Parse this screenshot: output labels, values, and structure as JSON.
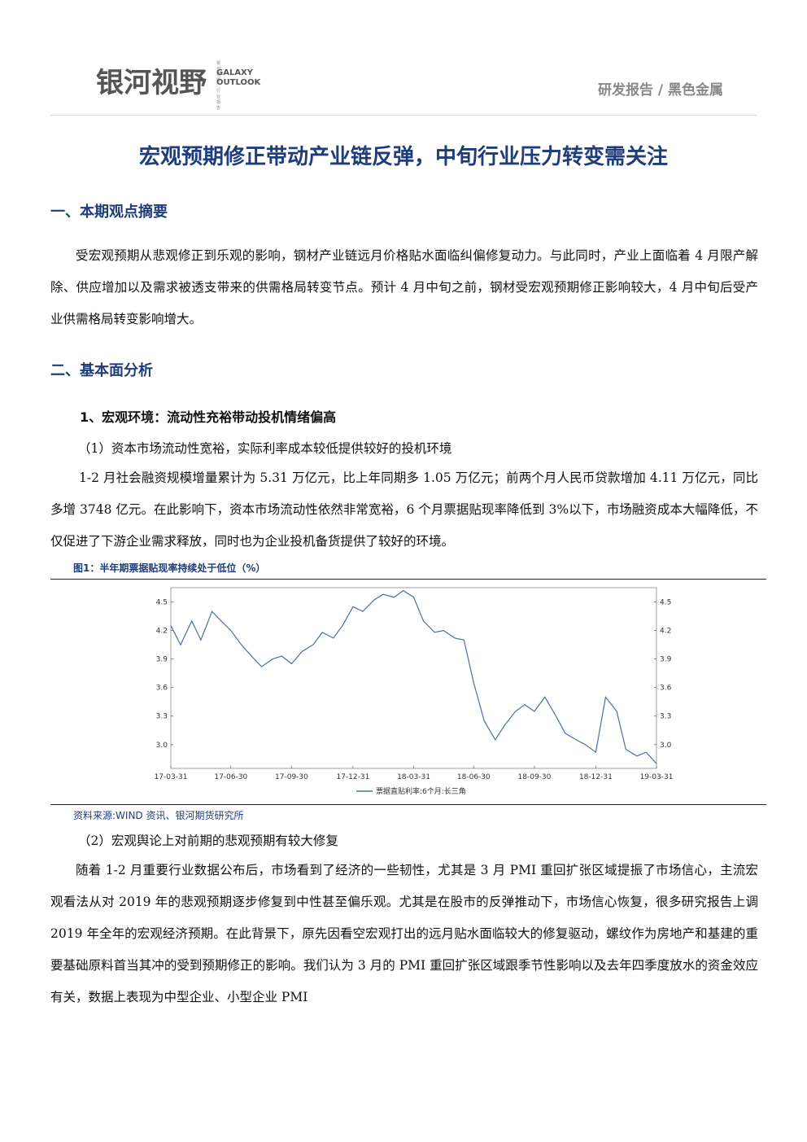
{
  "header": {
    "logo_cn": "银河视野",
    "logo_en_line1": "GALAXY",
    "logo_en_line2": "OUTLOOK",
    "logo_tiny": "银河视野 · 行业报告",
    "category": "研发报告 / 黑色金属"
  },
  "title": "宏观预期修正带动产业链反弹，中旬行业压力转变需关注",
  "section1": {
    "heading": "一、本期观点摘要",
    "body": "受宏观预期从悲观修正到乐观的影响，钢材产业链远月价格贴水面临纠偏修复动力。与此同时，产业上面临着 4 月限产解除、供应增加以及需求被透支带来的供需格局转变节点。预计 4 月中旬之前，钢材受宏观预期修正影响较大，4 月中旬后受产业供需格局转变影响增大。"
  },
  "section2": {
    "heading": "二、基本面分析",
    "sub1": "1、宏观环境：流动性充裕带动投机情绪偏高",
    "point1": "（1）资本市场流动性宽裕，实际利率成本较低提供较好的投机环境",
    "para1": "1-2 月社会融资规模增量累计为 5.31 万亿元，比上年同期多 1.05 万亿元；前两个月人民币贷款增加 4.11 万亿元，同比多增 3748 亿元。在此影响下，资本市场流动性依然非常宽裕，6 个月票据贴现率降低到 3%以下，市场融资成本大幅降低，不仅促进了下游企业需求释放，同时也为企业投机备货提供了较好的环境。",
    "figure_title": "图1：半年期票据贴现率持续处于低位（%）",
    "figure_source": "资料来源:WIND 资讯、银河期货研究所",
    "point2": "（2）宏观舆论上对前期的悲观预期有较大修复",
    "para2": "随着 1-2 月重要行业数据公布后，市场看到了经济的一些韧性，尤其是 3 月 PMI 重回扩张区域提振了市场信心，主流宏观看法从对 2019 年的悲观预期逐步修复到中性甚至偏乐观。尤其是在股市的反弹推动下，市场信心恢复，很多研究报告上调 2019 年全年的宏观经济预期。在此背景下，原先因看空宏观打出的远月贴水面临较大的修复驱动，螺纹作为房地产和基建的重要基础原料首当其冲的受到预期修正的影响。我们认为 3 月的 PMI 重回扩张区域跟季节性影响以及去年四季度放水的资金效应有关，数据上表现为中型企业、小型企业 PMI"
  },
  "chart_data": {
    "type": "line",
    "title": "",
    "xlabel": "",
    "ylabel": "",
    "x_ticks": [
      "17-03-31",
      "17-06-30",
      "17-09-30",
      "17-12-31",
      "18-03-31",
      "18-06-30",
      "18-09-30",
      "18-12-31",
      "19-03-31"
    ],
    "y_ticks": [
      "3.0",
      "3.3",
      "3.6",
      "3.9",
      "4.2",
      "4.5"
    ],
    "ylim": [
      2.75,
      4.65
    ],
    "legend": "票据直贴利率:6个月:长三角",
    "color": "#4a6fa5",
    "series": [
      {
        "name": "票据直贴利率:6个月:长三角",
        "x": [
          "17-03-31",
          "17-04-15",
          "17-05-01",
          "17-05-15",
          "17-06-01",
          "17-06-15",
          "17-06-30",
          "17-07-15",
          "17-08-01",
          "17-08-15",
          "17-09-01",
          "17-09-15",
          "17-09-30",
          "17-10-15",
          "17-11-01",
          "17-11-15",
          "17-12-01",
          "17-12-15",
          "17-12-31",
          "18-01-15",
          "18-02-01",
          "18-02-15",
          "18-03-01",
          "18-03-15",
          "18-03-31",
          "18-04-15",
          "18-05-01",
          "18-05-15",
          "18-06-01",
          "18-06-15",
          "18-06-30",
          "18-07-15",
          "18-08-01",
          "18-08-15",
          "18-09-01",
          "18-09-15",
          "18-09-30",
          "18-10-15",
          "18-11-01",
          "18-11-15",
          "18-12-01",
          "18-12-15",
          "18-12-31",
          "19-01-15",
          "19-02-01",
          "19-02-15",
          "19-03-01",
          "19-03-15",
          "19-03-31"
        ],
        "values": [
          4.25,
          4.05,
          4.3,
          4.1,
          4.4,
          4.3,
          4.2,
          4.05,
          3.92,
          3.82,
          3.9,
          3.93,
          3.85,
          3.98,
          4.05,
          4.18,
          4.12,
          4.25,
          4.45,
          4.4,
          4.52,
          4.58,
          4.55,
          4.62,
          4.55,
          4.3,
          4.18,
          4.2,
          4.12,
          4.1,
          3.65,
          3.25,
          3.05,
          3.2,
          3.35,
          3.42,
          3.35,
          3.5,
          3.3,
          3.12,
          3.05,
          3.0,
          2.92,
          3.5,
          3.35,
          2.95,
          2.88,
          2.92,
          2.8
        ]
      }
    ]
  }
}
